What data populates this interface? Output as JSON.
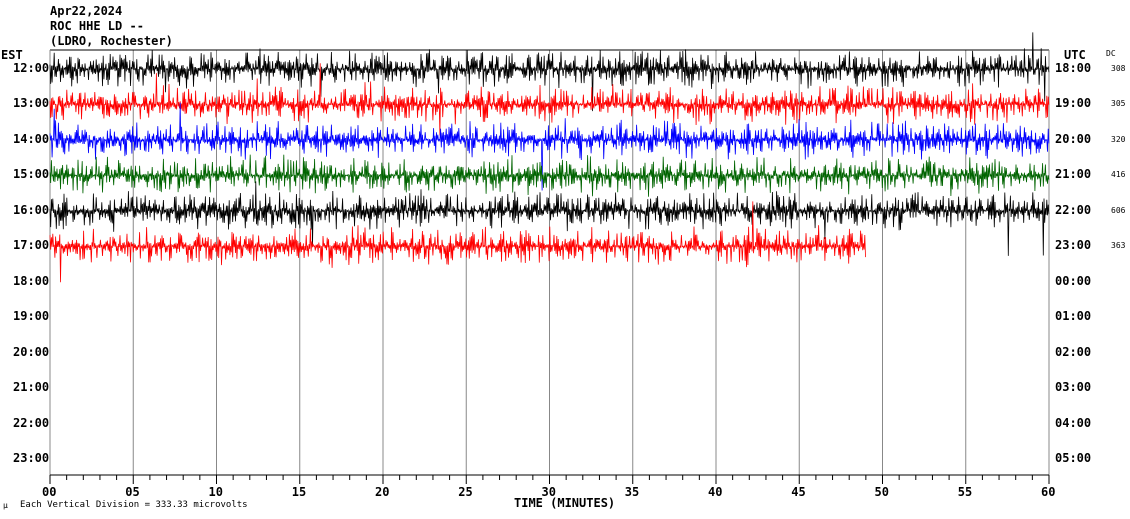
{
  "header": {
    "date": "Apr22,2024",
    "station": "ROC HHE LD --",
    "location": "(LDRO, Rochester)"
  },
  "chart_data": {
    "type": "line",
    "title": "Apr22,2024 ROC HHE LD -- (LDRO, Rochester)",
    "xlabel": "TIME (MINUTES)",
    "x_ticks": [
      "00",
      "05",
      "10",
      "15",
      "20",
      "25",
      "30",
      "35",
      "40",
      "45",
      "50",
      "55",
      "60"
    ],
    "xlim": [
      0,
      60
    ],
    "left_axis_label": "EST",
    "right_axis_label": "UTC",
    "dc_label": "DC",
    "rows": [
      {
        "est": "12:00",
        "utc": "18:00",
        "dc": "308",
        "color": "#000000",
        "minutes_recorded": 60
      },
      {
        "est": "13:00",
        "utc": "19:00",
        "dc": "305",
        "color": "#ff0000",
        "minutes_recorded": 60
      },
      {
        "est": "14:00",
        "utc": "20:00",
        "dc": "320",
        "color": "#0000ff",
        "minutes_recorded": 60
      },
      {
        "est": "15:00",
        "utc": "21:00",
        "dc": "416",
        "color": "#006400",
        "minutes_recorded": 60
      },
      {
        "est": "16:00",
        "utc": "22:00",
        "dc": "606",
        "color": "#000000",
        "minutes_recorded": 60
      },
      {
        "est": "17:00",
        "utc": "23:00",
        "dc": "363",
        "color": "#ff0000",
        "minutes_recorded": 49
      },
      {
        "est": "18:00",
        "utc": "00:00"
      },
      {
        "est": "19:00",
        "utc": "01:00"
      },
      {
        "est": "20:00",
        "utc": "02:00"
      },
      {
        "est": "21:00",
        "utc": "03:00"
      },
      {
        "est": "22:00",
        "utc": "04:00"
      },
      {
        "est": "23:00",
        "utc": "05:00"
      }
    ],
    "footer_mark": "µ",
    "scale_note": "Each Vertical Division =  333.33 microvolts"
  }
}
